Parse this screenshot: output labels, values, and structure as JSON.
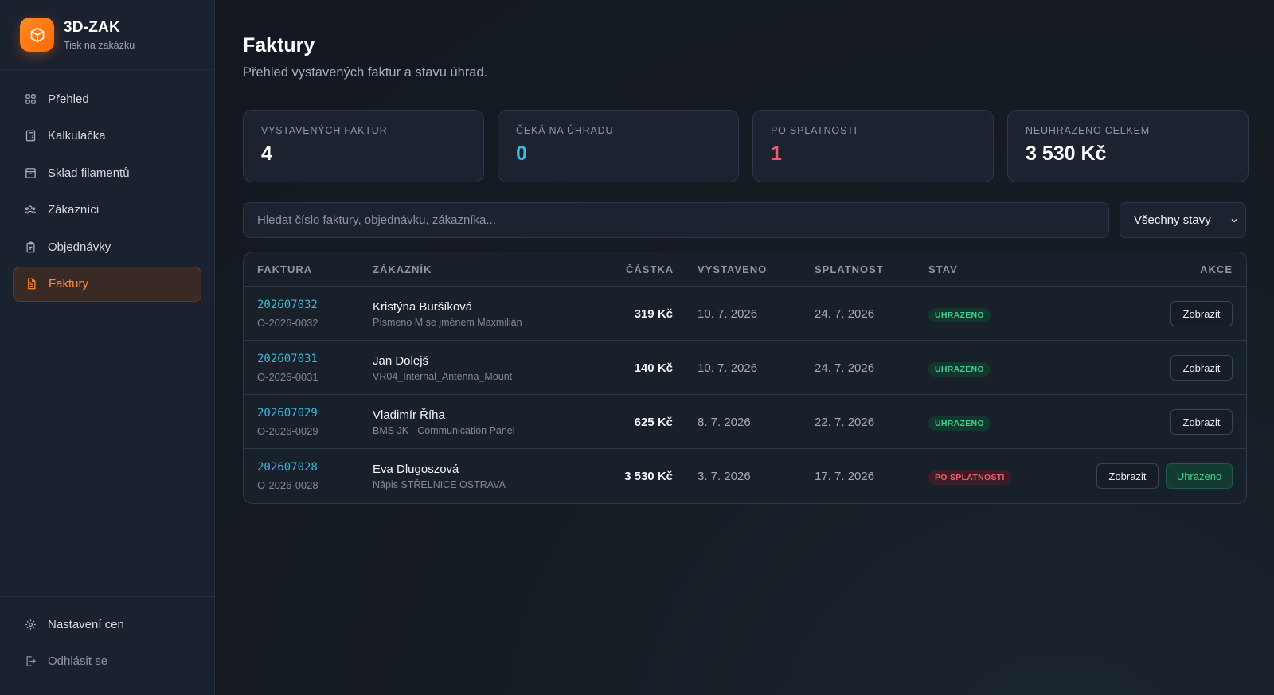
{
  "app": {
    "title": "3D-ZAK",
    "subtitle": "Tisk na zakázku",
    "logo_icon": "box-icon",
    "accent": "#ff7a1a"
  },
  "sidebar": {
    "items": [
      {
        "label": "Přehled",
        "icon": "grid-icon",
        "active": false
      },
      {
        "label": "Kalkulačka",
        "icon": "calculator-icon",
        "active": false
      },
      {
        "label": "Sklad filamentů",
        "icon": "archive-icon",
        "active": false
      },
      {
        "label": "Zákazníci",
        "icon": "users-icon",
        "active": false
      },
      {
        "label": "Objednávky",
        "icon": "clipboard-icon",
        "active": false
      },
      {
        "label": "Faktury",
        "icon": "file-icon",
        "active": true
      }
    ],
    "bottom": [
      {
        "label": "Nastavení cen",
        "icon": "gear-icon"
      },
      {
        "label": "Odhlásit se",
        "icon": "logout-icon"
      }
    ]
  },
  "page": {
    "title": "Faktury",
    "subtitle": "Přehled vystavených faktur a stavu úhrad."
  },
  "stats": [
    {
      "label": "VYSTAVENÝCH FAKTUR",
      "value": "4",
      "color": "#ffffff"
    },
    {
      "label": "ČEKÁ NA ÚHRADU",
      "value": "0",
      "color": "#3fb8e0"
    },
    {
      "label": "PO SPLATNOSTI",
      "value": "1",
      "color": "#f05a6b"
    },
    {
      "label": "NEUHRAZENO CELKEM",
      "value": "3 530 Kč",
      "color": "#ffffff"
    }
  ],
  "search": {
    "placeholder": "Hledat číslo faktury, objednávku, zákazníka..."
  },
  "filter": {
    "selected": "Všechny stavy"
  },
  "table": {
    "headers": {
      "invoice": "FAKTURA",
      "customer": "ZÁKAZNÍK",
      "amount": "ČÁSTKA",
      "issued": "VYSTAVENO",
      "due": "SPLATNOST",
      "status": "STAV",
      "actions": "AKCE"
    },
    "rows": [
      {
        "number": "202607032",
        "order": "O-2026-0032",
        "customer": "Kristýna Buršíková",
        "item": "Písmeno M se jménem Maxmilián",
        "amount": "319 Kč",
        "issued": "10. 7. 2026",
        "due": "24. 7. 2026",
        "status": "UHRAZENO",
        "status_type": "paid",
        "view": "Zobrazit"
      },
      {
        "number": "202607031",
        "order": "O-2026-0031",
        "customer": "Jan Dolejš",
        "item": "VR04_Internal_Antenna_Mount",
        "amount": "140 Kč",
        "issued": "10. 7. 2026",
        "due": "24. 7. 2026",
        "status": "UHRAZENO",
        "status_type": "paid",
        "view": "Zobrazit"
      },
      {
        "number": "202607029",
        "order": "O-2026-0029",
        "customer": "Vladimír Říha",
        "item": "BMS JK - Communication Panel",
        "amount": "625 Kč",
        "issued": "8. 7. 2026",
        "due": "22. 7. 2026",
        "status": "UHRAZENO",
        "status_type": "paid",
        "view": "Zobrazit"
      },
      {
        "number": "202607028",
        "order": "O-2026-0028",
        "customer": "Eva Dlugoszová",
        "item": "Nápis STŘELNICE OSTRAVA",
        "amount": "3 530 Kč",
        "issued": "3. 7. 2026",
        "due": "17. 7. 2026",
        "status": "PO SPLATNOSTI",
        "status_type": "overdue",
        "view": "Zobrazit",
        "mark_paid": "Uhrazeno"
      }
    ]
  }
}
